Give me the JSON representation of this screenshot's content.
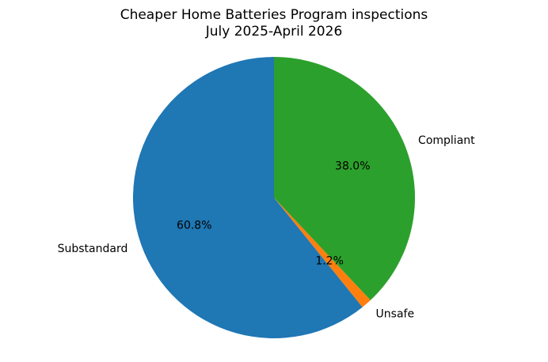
{
  "chart_data": {
    "type": "pie",
    "title": "Cheaper Home Batteries Program inspections",
    "subtitle": "July 2025-April 2026",
    "categories": [
      "Substandard",
      "Unsafe",
      "Compliant"
    ],
    "values": [
      60.8,
      1.2,
      38.0
    ],
    "value_labels": [
      "60.8%",
      "1.2%",
      "38.0%"
    ],
    "colors": [
      "#1f77b4",
      "#ff7f0e",
      "#2ca02c"
    ]
  }
}
